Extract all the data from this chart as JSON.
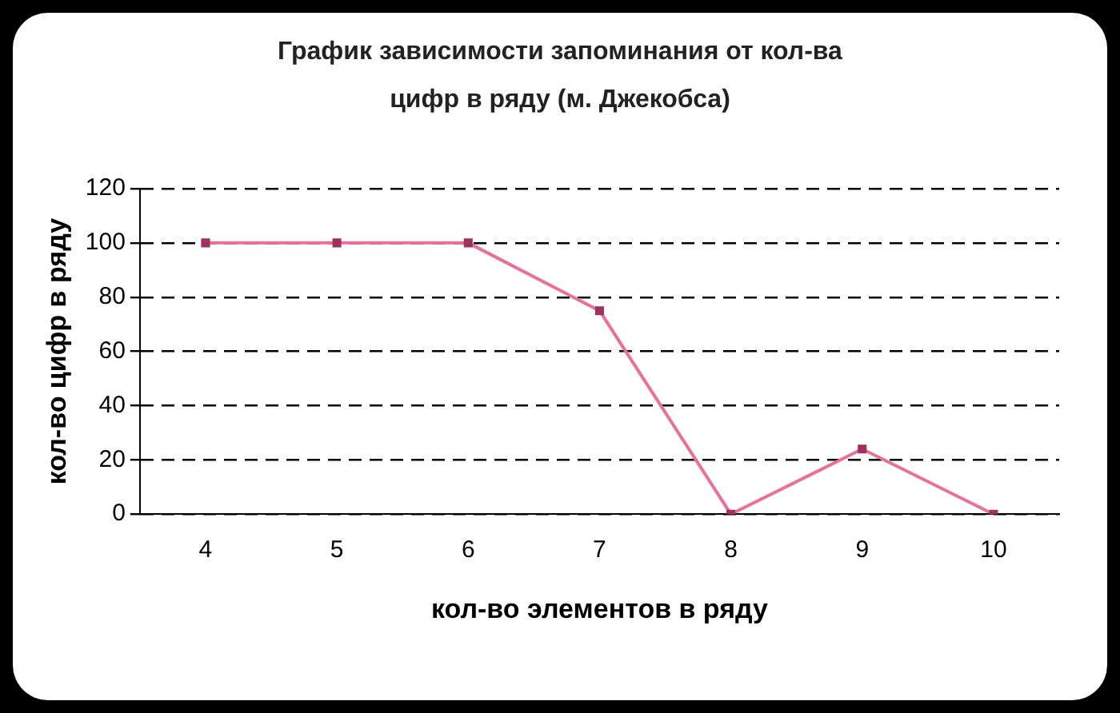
{
  "chart_data": {
    "type": "line",
    "title": "График зависимости запоминания от кол-ва цифр в ряду (м. Джекобса)",
    "xlabel": "кол-во элементов в ряду",
    "ylabel": "кол-во цифр в ряду",
    "categories": [
      "4",
      "5",
      "6",
      "7",
      "8",
      "9",
      "10"
    ],
    "series": [
      {
        "color": "#e8709a",
        "values": [
          100,
          100,
          100,
          75,
          0,
          24,
          0
        ]
      }
    ],
    "ylim": [
      0,
      120
    ],
    "yticks": [
      0,
      20,
      40,
      60,
      80,
      100,
      120
    ],
    "grid": "y",
    "marker": "square",
    "line_style": "solid",
    "legend": false
  }
}
